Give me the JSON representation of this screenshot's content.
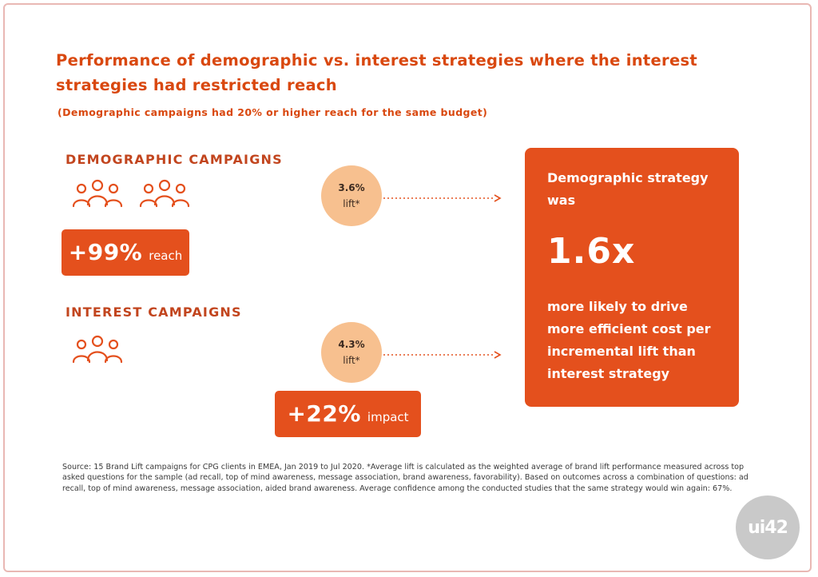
{
  "title": "Performance of demographic vs. interest strategies where the interest strategies had restricted reach",
  "subtitle": "(Demographic campaigns had 20% or higher reach for the same budget)",
  "demographic": {
    "label": "DEMOGRAPHIC CAMPAIGNS",
    "icons": [
      "people-group-icon",
      "people-group-icon"
    ],
    "reach_value": "+99%",
    "reach_unit": "reach",
    "lift_value": "3.6%",
    "lift_unit": "lift*"
  },
  "interest": {
    "label": "INTEREST CAMPAIGNS",
    "icons": [
      "people-group-icon"
    ],
    "impact_value": "+22%",
    "impact_unit": "impact",
    "lift_value": "4.3%",
    "lift_unit": "lift*"
  },
  "result": {
    "lead": "Demographic strategy was",
    "value": "1.6x",
    "tail": "more likely to drive more efficient cost per incremental lift than interest strategy"
  },
  "source": "Source: 15 Brand Lift campaigns for CPG clients in EMEA, Jan 2019 to Jul 2020. *Average lift is calculated as the weighted average of brand lift performance measured across top asked questions for the sample (ad recall, top of mind awareness, message association, brand awareness, favorability).  Based on outcomes across a combination of questions: ad recall, top of mind awareness, message association, aided brand awareness. Average confidence among the conducted studies that the same strategy would win again: 67%.",
  "watermark": "ui42",
  "colors": {
    "accent": "#e4501d",
    "title": "#d9480f",
    "badge": "#f7c08f",
    "border": "#e9b8b4"
  }
}
